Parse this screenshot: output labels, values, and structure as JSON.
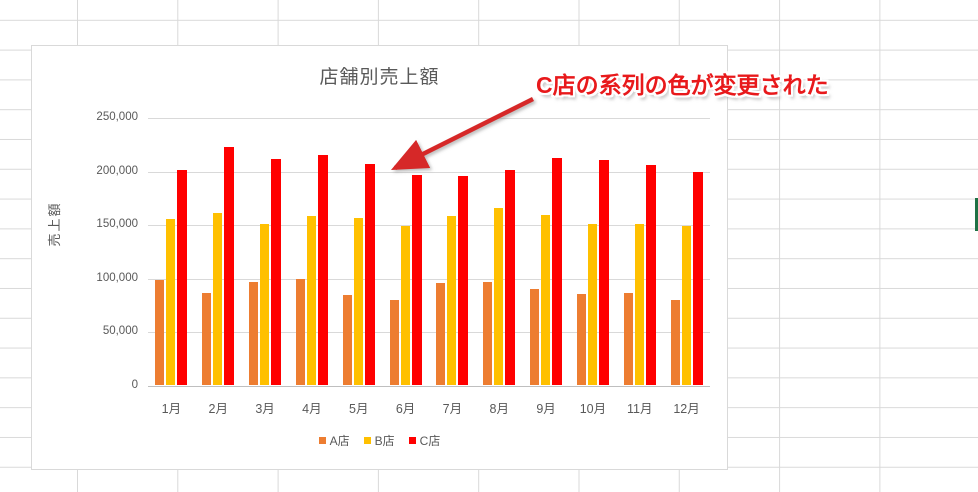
{
  "worksheet": {
    "grid_color": "#D9D9D9",
    "selection_marker_color": "#1E7145"
  },
  "annotation": {
    "text": "C店の系列の色が変更された",
    "color": "#E8191B",
    "arrow_color": "#D62828"
  },
  "chart_data": {
    "type": "bar",
    "title": "店舗別売上額",
    "ylabel": "売上額",
    "xlabel": "",
    "ylim": [
      0,
      250000
    ],
    "ytick_step": 50000,
    "y_ticks": [
      "0",
      "50,000",
      "100,000",
      "150,000",
      "200,000",
      "250,000"
    ],
    "grid": true,
    "legend_position": "bottom",
    "categories": [
      "1月",
      "2月",
      "3月",
      "4月",
      "5月",
      "6月",
      "7月",
      "8月",
      "9月",
      "10月",
      "11月",
      "12月"
    ],
    "series": [
      {
        "name": "A店",
        "color": "#ED7D31",
        "values": [
          98000,
          86000,
          96000,
          99000,
          84000,
          79000,
          95000,
          96000,
          90000,
          85000,
          86000,
          79000
        ]
      },
      {
        "name": "B店",
        "color": "#FFC000",
        "values": [
          155000,
          160000,
          150000,
          158000,
          156000,
          148000,
          158000,
          165000,
          159000,
          150000,
          150000,
          148000
        ]
      },
      {
        "name": "C店",
        "color": "#FF0000",
        "values": [
          201000,
          222000,
          211000,
          215000,
          206000,
          196000,
          195000,
          201000,
          212000,
          210000,
          205000,
          199000
        ]
      }
    ]
  }
}
